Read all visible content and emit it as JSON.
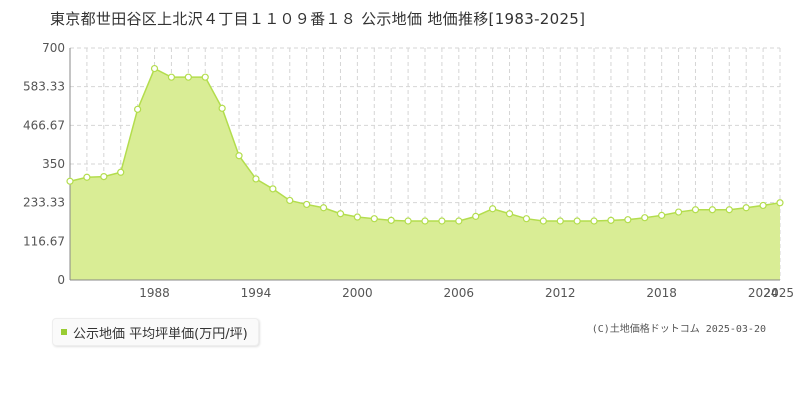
{
  "title": "東京都世田谷区上北沢４丁目１１０９番１８ 公示地価 地価推移[1983-2025]",
  "legend": {
    "label": "公示地価 平均坪単価(万円/坪)"
  },
  "source": "(C)土地価格ドットコム 2025-03-20",
  "colors": {
    "line": "#b3dd4d",
    "fill": "#d9ed95",
    "grid": "#d6d6d6",
    "marker_fill": "#ffffff",
    "swatch": "#99cc33"
  },
  "chart_data": {
    "type": "area",
    "series": [
      {
        "name": "公示地価 平均坪単価(万円/坪)",
        "x": [
          1983,
          1984,
          1985,
          1986,
          1987,
          1988,
          1989,
          1990,
          1991,
          1992,
          1993,
          1994,
          1995,
          1996,
          1997,
          1998,
          1999,
          2000,
          2001,
          2002,
          2003,
          2004,
          2005,
          2006,
          2007,
          2008,
          2009,
          2010,
          2011,
          2012,
          2013,
          2014,
          2015,
          2016,
          2017,
          2018,
          2019,
          2020,
          2021,
          2022,
          2023,
          2024,
          2025
        ],
        "values": [
          298,
          310,
          312,
          325,
          515,
          638,
          612,
          612,
          612,
          518,
          375,
          305,
          275,
          240,
          228,
          218,
          200,
          190,
          185,
          180,
          178,
          178,
          178,
          178,
          192,
          215,
          200,
          185,
          178,
          178,
          178,
          178,
          180,
          182,
          188,
          195,
          205,
          212,
          212,
          212,
          218,
          225,
          233
        ]
      }
    ],
    "xlim": [
      1983,
      2025
    ],
    "ylim": [
      0,
      700
    ],
    "yticks": [
      0,
      116.67,
      233.33,
      350,
      466.67,
      583.33,
      700
    ],
    "ytick_labels": [
      "0",
      "116.67",
      "233.33",
      "350",
      "466.67",
      "583.33",
      "700"
    ],
    "xtick_labels": [
      "1988",
      "1994",
      "2000",
      "2006",
      "2012",
      "2018",
      "2024",
      "2025"
    ],
    "xtick_values": [
      1988,
      1994,
      2000,
      2006,
      2012,
      2018,
      2024,
      2025
    ],
    "grid": true,
    "legend_position": "bottom-left"
  }
}
